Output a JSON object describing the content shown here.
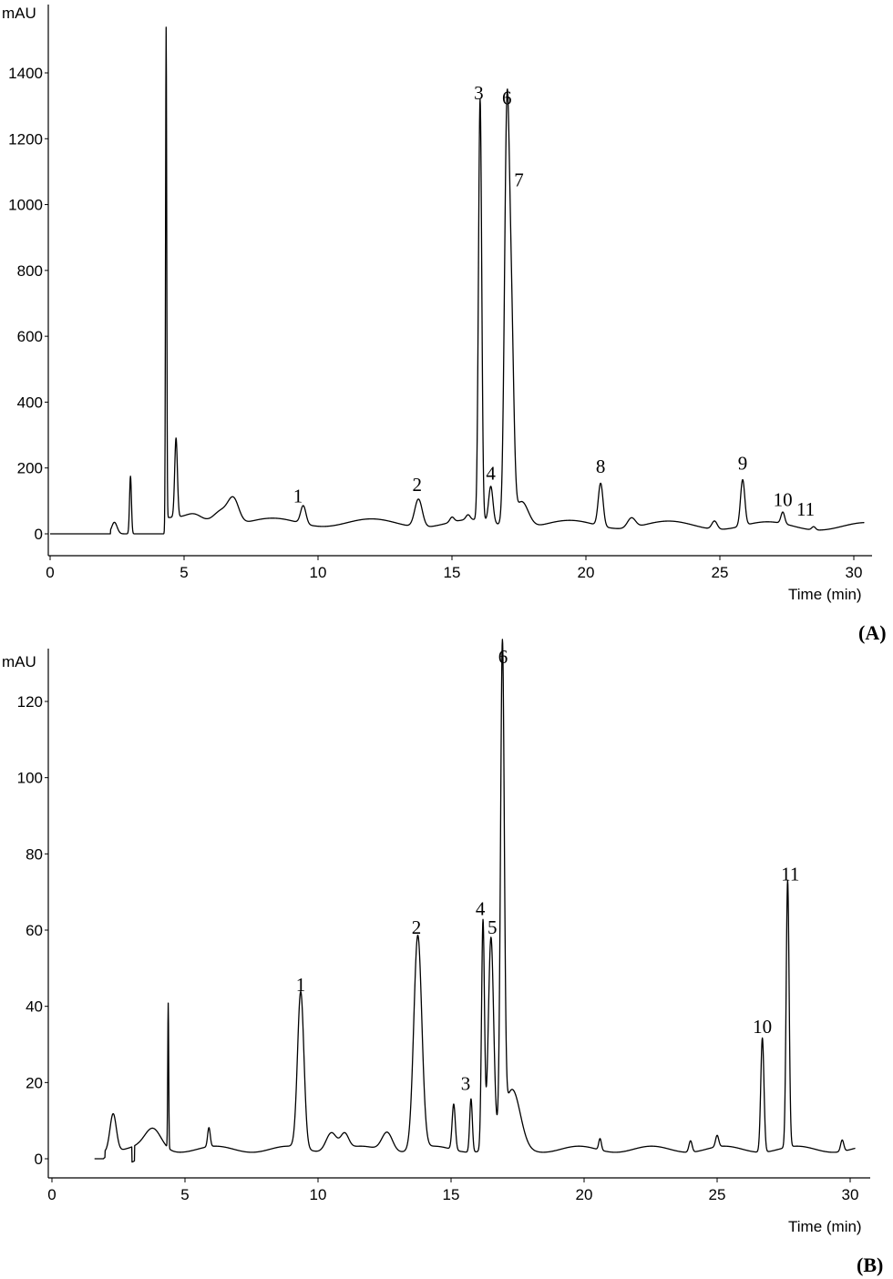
{
  "chart_data": [
    {
      "type": "line",
      "panel_label": "(A)",
      "ylabel": "mAU",
      "xlabel": "Time (min)",
      "xlim": [
        0,
        30.5
      ],
      "ylim": [
        -60,
        1530
      ],
      "x_ticks": [
        0,
        5,
        10,
        15,
        20,
        25,
        30
      ],
      "y_ticks": [
        0,
        200,
        400,
        600,
        800,
        1000,
        1200,
        1400
      ],
      "baseline": 0,
      "peaks": [
        {
          "x": 2.4,
          "y": 35,
          "w": 0.1
        },
        {
          "x": 3.0,
          "y": 175,
          "w": 0.035
        },
        {
          "x": 4.33,
          "y": 1490,
          "w": 0.022
        },
        {
          "x": 4.7,
          "y": 240,
          "w": 0.05
        },
        {
          "x": 5.4,
          "y": 20,
          "w": 0.3
        },
        {
          "x": 6.4,
          "y": 45,
          "w": 0.3
        },
        {
          "x": 6.85,
          "y": 70,
          "w": 0.2
        },
        {
          "x": 9.45,
          "y": 55,
          "w": 0.1
        },
        {
          "x": 13.75,
          "y": 85,
          "w": 0.14
        },
        {
          "x": 15.0,
          "y": 15,
          "w": 0.08
        },
        {
          "x": 15.6,
          "y": 15,
          "w": 0.08
        },
        {
          "x": 16.05,
          "y": 1280,
          "w": 0.06
        },
        {
          "x": 16.45,
          "y": 110,
          "w": 0.08
        },
        {
          "x": 17.05,
          "y": 1210,
          "w": 0.09
        },
        {
          "x": 17.22,
          "y": 560,
          "w": 0.09
        },
        {
          "x": 17.6,
          "y": 80,
          "w": 0.25
        },
        {
          "x": 20.55,
          "y": 130,
          "w": 0.09
        },
        {
          "x": 21.7,
          "y": 30,
          "w": 0.15
        },
        {
          "x": 24.8,
          "y": 25,
          "w": 0.1
        },
        {
          "x": 25.85,
          "y": 140,
          "w": 0.08
        },
        {
          "x": 27.35,
          "y": 35,
          "w": 0.07
        },
        {
          "x": 28.5,
          "y": 10,
          "w": 0.07
        }
      ],
      "peak_labels": [
        {
          "text": "1",
          "x": 9.25,
          "y": 95
        },
        {
          "text": "2",
          "x": 13.7,
          "y": 130
        },
        {
          "text": "3",
          "x": 16.0,
          "y": 1320
        },
        {
          "text": "4",
          "x": 16.45,
          "y": 165
        },
        {
          "text": "6",
          "x": 17.05,
          "y": 1305
        },
        {
          "text": "7",
          "x": 17.5,
          "y": 1055
        },
        {
          "text": "8",
          "x": 20.55,
          "y": 185
        },
        {
          "text": "9",
          "x": 25.85,
          "y": 195
        },
        {
          "text": "10",
          "x": 27.35,
          "y": 85
        },
        {
          "text": "11",
          "x": 28.2,
          "y": 55
        }
      ]
    },
    {
      "type": "line",
      "panel_label": "(B)",
      "ylabel": "mAU",
      "xlabel": "Time (min)",
      "xlim": [
        0,
        30.5
      ],
      "ylim": [
        -5,
        135
      ],
      "x_ticks": [
        0,
        5,
        10,
        15,
        20,
        25,
        30
      ],
      "y_ticks": [
        0,
        20,
        40,
        60,
        80,
        100,
        120
      ],
      "baseline": 0,
      "peaks": [
        {
          "x": 2.3,
          "y": 10,
          "w": 0.12
        },
        {
          "x": 3.8,
          "y": 5,
          "w": 0.3
        },
        {
          "x": 4.37,
          "y": 38,
          "w": 0.018
        },
        {
          "x": 5.9,
          "y": 5,
          "w": 0.05
        },
        {
          "x": 9.35,
          "y": 41,
          "w": 0.12
        },
        {
          "x": 10.5,
          "y": 5,
          "w": 0.2
        },
        {
          "x": 11.0,
          "y": 4,
          "w": 0.15
        },
        {
          "x": 12.6,
          "y": 5,
          "w": 0.2
        },
        {
          "x": 13.75,
          "y": 56,
          "w": 0.15
        },
        {
          "x": 15.1,
          "y": 12,
          "w": 0.06
        },
        {
          "x": 15.75,
          "y": 14,
          "w": 0.05
        },
        {
          "x": 16.2,
          "y": 60,
          "w": 0.055
        },
        {
          "x": 16.5,
          "y": 55,
          "w": 0.1
        },
        {
          "x": 16.93,
          "y": 126,
          "w": 0.07
        },
        {
          "x": 17.3,
          "y": 15,
          "w": 0.3
        },
        {
          "x": 20.6,
          "y": 3,
          "w": 0.05
        },
        {
          "x": 24.0,
          "y": 3,
          "w": 0.06
        },
        {
          "x": 25.0,
          "y": 3,
          "w": 0.06
        },
        {
          "x": 26.7,
          "y": 30,
          "w": 0.06
        },
        {
          "x": 27.65,
          "y": 70,
          "w": 0.055
        },
        {
          "x": 29.7,
          "y": 3,
          "w": 0.06
        }
      ],
      "peak_labels": [
        {
          "text": "1",
          "x": 9.35,
          "y": 44
        },
        {
          "text": "2",
          "x": 13.7,
          "y": 59
        },
        {
          "text": "3",
          "x": 15.55,
          "y": 18
        },
        {
          "text": "4",
          "x": 16.1,
          "y": 64
        },
        {
          "text": "5",
          "x": 16.55,
          "y": 59
        },
        {
          "text": "6",
          "x": 16.95,
          "y": 130
        },
        {
          "text": "10",
          "x": 26.7,
          "y": 33
        },
        {
          "text": "11",
          "x": 27.75,
          "y": 73
        }
      ]
    }
  ]
}
